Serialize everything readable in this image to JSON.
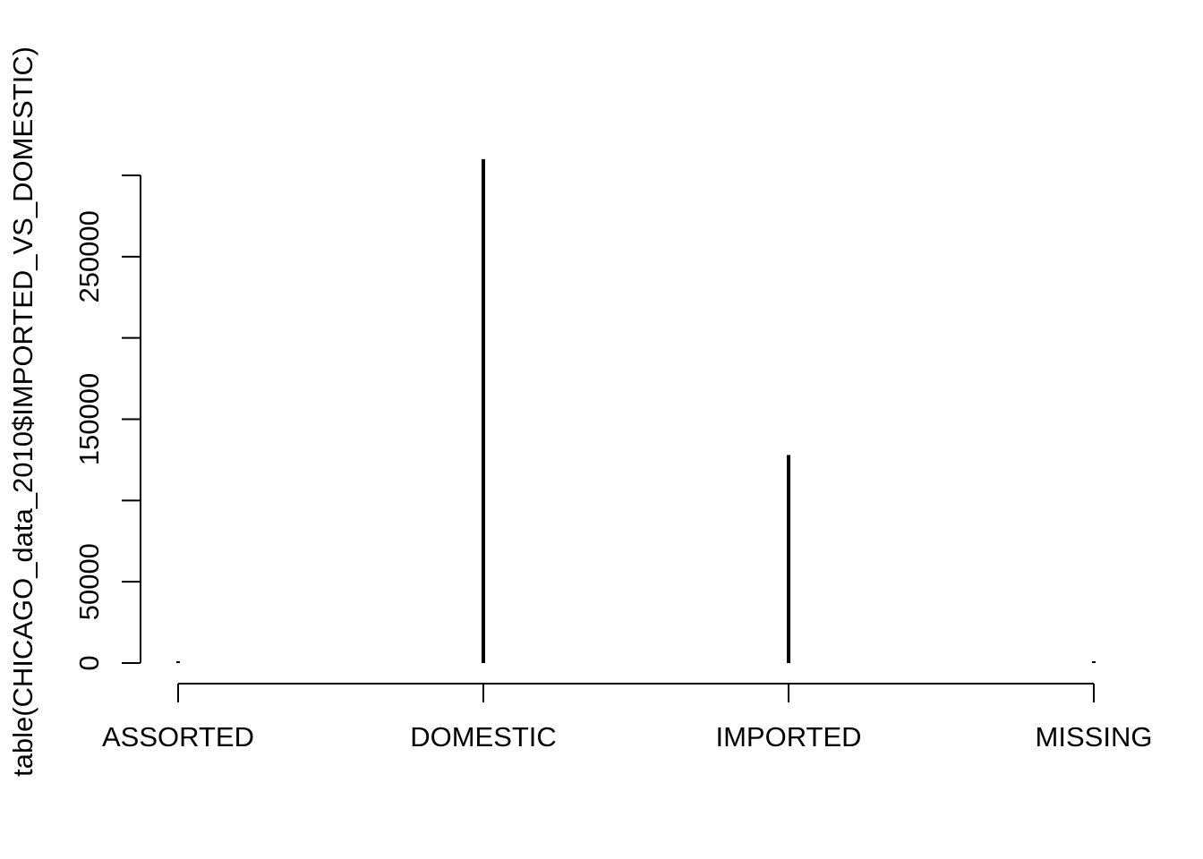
{
  "chart_data": {
    "type": "bar",
    "ylabel": "table(CHICAGO_data_2010$IMPORTED_VS_DOMESTIC)",
    "categories": [
      "ASSORTED",
      "DOMESTIC",
      "IMPORTED",
      "MISSING"
    ],
    "values": [
      300,
      310000,
      128000,
      500
    ],
    "ylim": [
      0,
      310000
    ],
    "yticks": [
      0,
      50000,
      100000,
      150000,
      200000,
      250000,
      300000
    ],
    "ytick_labels": [
      "0",
      "50000",
      "",
      "150000",
      "",
      "250000",
      ""
    ],
    "grid": false,
    "legend": false
  }
}
